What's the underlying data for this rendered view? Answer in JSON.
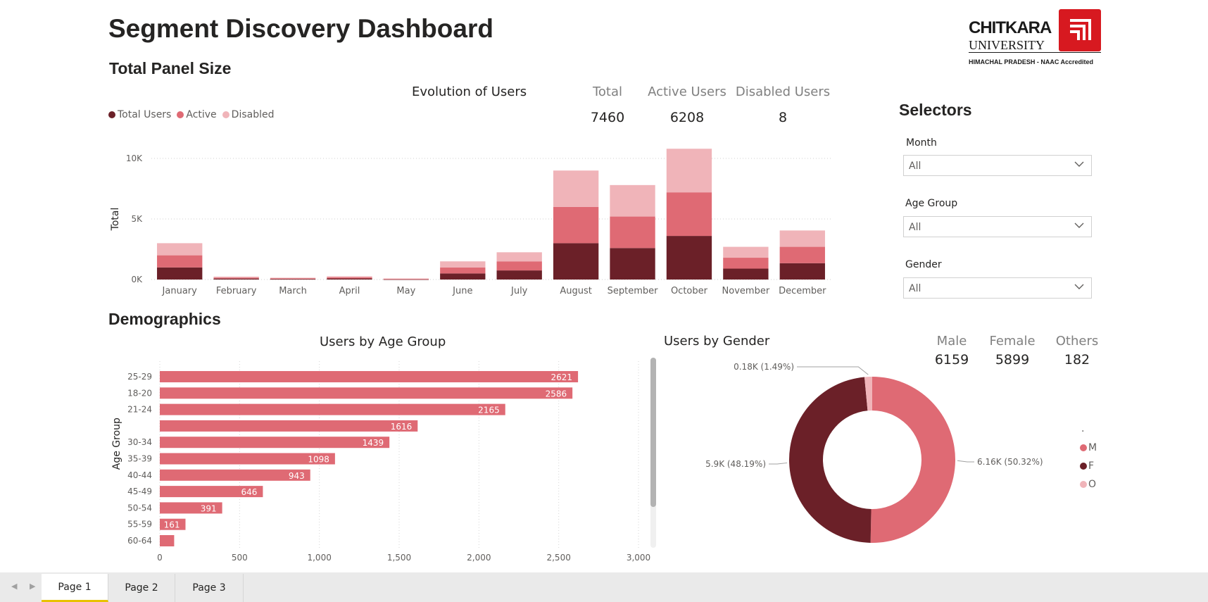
{
  "header": {
    "title": "Segment Discovery Dashboard"
  },
  "logo": {
    "name": "CHITKARA",
    "subname": "UNIVERSITY",
    "tagline": "HIMACHAL PRADESH - NAAC Accredited",
    "color": "#d71920"
  },
  "panel": {
    "section_title": "Total Panel Size",
    "chart_title": "Evolution of Users",
    "legend": [
      "Total Users",
      "Active",
      "Disabled"
    ],
    "kpis": [
      {
        "label": "Total",
        "value": "7460"
      },
      {
        "label": "Active Users",
        "value": "6208"
      },
      {
        "label": "Disabled Users",
        "value": "8"
      }
    ]
  },
  "selectors": {
    "title": "Selectors",
    "items": [
      {
        "label": "Month",
        "value": "All"
      },
      {
        "label": "Age Group",
        "value": "All"
      },
      {
        "label": "Gender",
        "value": "All"
      }
    ]
  },
  "demographics": {
    "section_title": "Demographics",
    "age_chart_title": "Users by Age Group",
    "gender_chart_title": "Users by Gender",
    "gender_kpis": [
      {
        "label": "Male",
        "value": "6159"
      },
      {
        "label": "Female",
        "value": "5899"
      },
      {
        "label": "Others",
        "value": "182"
      }
    ],
    "gender_legend_title": ".",
    "gender_legend": [
      "M",
      "F",
      "O"
    ]
  },
  "colors": {
    "dark": "#6b2028",
    "mid": "#df6a74",
    "light": "#f0b4b9"
  },
  "chart_data": [
    {
      "type": "bar",
      "stacked": true,
      "title": "Evolution of Users",
      "ylabel": "Total",
      "xlabel": "",
      "ylim": [
        0,
        11000
      ],
      "yticks": [
        "0K",
        "5K",
        "10K"
      ],
      "categories": [
        "January",
        "February",
        "March",
        "April",
        "May",
        "June",
        "July",
        "August",
        "September",
        "October",
        "November",
        "December"
      ],
      "series": [
        {
          "name": "Total Users",
          "color": "#6b2028",
          "values": [
            1000,
            80,
            50,
            90,
            30,
            500,
            750,
            3000,
            2600,
            3600,
            900,
            1350
          ]
        },
        {
          "name": "Active",
          "color": "#df6a74",
          "values": [
            1000,
            80,
            50,
            90,
            30,
            500,
            750,
            3000,
            2600,
            3600,
            900,
            1350
          ]
        },
        {
          "name": "Disabled",
          "color": "#f0b4b9",
          "values": [
            1000,
            80,
            50,
            90,
            30,
            500,
            750,
            3000,
            2600,
            3600,
            900,
            1350
          ]
        }
      ],
      "grid": true,
      "legend_position": "top-left"
    },
    {
      "type": "bar",
      "orientation": "horizontal",
      "title": "Users by Age Group",
      "ylabel": "Age Group",
      "xlabel": "",
      "xlim": [
        0,
        3000
      ],
      "xticks": [
        "0",
        "500",
        "1,000",
        "1,500",
        "2,000",
        "2,500",
        "3,000"
      ],
      "categories": [
        "25-29",
        "18-20",
        "21-24",
        "",
        "30-34",
        "35-39",
        "40-44",
        "45-49",
        "50-54",
        "55-59",
        "60-64"
      ],
      "values": [
        2621,
        2586,
        2165,
        1616,
        1439,
        1098,
        943,
        646,
        391,
        161,
        90
      ],
      "data_labels": [
        "2621",
        "2586",
        "2165",
        "1616",
        "1439",
        "1098",
        "943",
        "646",
        "391",
        "161",
        ""
      ],
      "color": "#df6a74",
      "grid": true
    },
    {
      "type": "pie",
      "donut": true,
      "title": "Users by Gender",
      "categories": [
        "M",
        "F",
        "O"
      ],
      "values": [
        6159,
        5899,
        182
      ],
      "data_labels": [
        "6.16K (50.32%)",
        "5.9K (48.19%)",
        "0.18K (1.49%)"
      ],
      "colors": [
        "#df6a74",
        "#6b2028",
        "#f0b4b9"
      ],
      "legend_position": "right"
    }
  ],
  "tabs": [
    "Page 1",
    "Page 2",
    "Page 3"
  ]
}
